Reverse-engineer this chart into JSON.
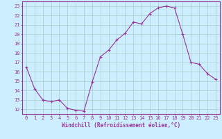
{
  "x": [
    0,
    1,
    2,
    3,
    4,
    5,
    6,
    7,
    8,
    9,
    10,
    11,
    12,
    13,
    14,
    15,
    16,
    17,
    18,
    19,
    20,
    21,
    22,
    23
  ],
  "y": [
    16.5,
    14.2,
    13.0,
    12.8,
    13.0,
    12.1,
    11.9,
    11.8,
    14.9,
    17.6,
    18.3,
    19.4,
    20.1,
    21.3,
    21.1,
    22.2,
    22.8,
    23.0,
    22.8,
    20.0,
    17.0,
    16.8,
    15.8,
    15.2
  ],
  "line_color": "#993399",
  "marker": "+",
  "marker_size": 3,
  "line_width": 0.8,
  "background_color": "#cceeff",
  "grid_color": "#aacccc",
  "xlabel": "Windchill (Refroidissement éolien,°C)",
  "xlabel_fontsize": 5.5,
  "tick_fontsize": 5.0,
  "ylim": [
    11.5,
    23.5
  ],
  "yticks": [
    12,
    13,
    14,
    15,
    16,
    17,
    18,
    19,
    20,
    21,
    22,
    23
  ],
  "xticks": [
    0,
    1,
    2,
    3,
    4,
    5,
    6,
    7,
    8,
    9,
    10,
    11,
    12,
    13,
    14,
    15,
    16,
    17,
    18,
    19,
    20,
    21,
    22,
    23
  ]
}
